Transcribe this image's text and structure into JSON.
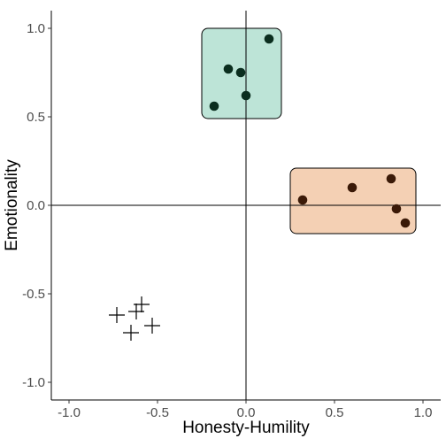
{
  "chart_data": {
    "type": "scatter",
    "title": "",
    "xlabel": "Honesty-Humility",
    "ylabel": "Emotionality",
    "xlim": [
      -1.1,
      1.1
    ],
    "ylim": [
      -1.1,
      1.1
    ],
    "x_ticks": [
      -1.0,
      -0.5,
      0.0,
      0.5,
      1.0
    ],
    "x_tick_labels": [
      "-1.0",
      "-0.5",
      "0.0",
      "0.5",
      "1.0"
    ],
    "y_ticks": [
      -1.0,
      -0.5,
      0.0,
      0.5,
      1.0
    ],
    "y_tick_labels": [
      "-1.0",
      "-0.5",
      "0.0",
      "0.5",
      "1.0"
    ],
    "grid": false,
    "reference_lines": {
      "x": 0,
      "y": 0
    },
    "series": [
      {
        "marker": "circle",
        "color": "#0b2e1f",
        "box": {
          "x": [
            -0.25,
            0.2
          ],
          "y": [
            0.49,
            1.0
          ],
          "fill": "#bde4d7"
        },
        "points": [
          {
            "x": 0.13,
            "y": 0.94
          },
          {
            "x": -0.1,
            "y": 0.77
          },
          {
            "x": -0.03,
            "y": 0.75
          },
          {
            "x": 0.0,
            "y": 0.62
          },
          {
            "x": -0.18,
            "y": 0.56
          }
        ]
      },
      {
        "marker": "circle",
        "color": "#3b1a08",
        "box": {
          "x": [
            0.25,
            0.96
          ],
          "y": [
            -0.16,
            0.21
          ],
          "fill": "#f4d0b4"
        },
        "points": [
          {
            "x": 0.32,
            "y": 0.03
          },
          {
            "x": 0.6,
            "y": 0.1
          },
          {
            "x": 0.82,
            "y": 0.15
          },
          {
            "x": 0.85,
            "y": -0.02
          },
          {
            "x": 0.9,
            "y": -0.1
          }
        ]
      },
      {
        "marker": "cross",
        "color": "#000000",
        "points": [
          {
            "x": -0.73,
            "y": -0.62
          },
          {
            "x": -0.62,
            "y": -0.6
          },
          {
            "x": -0.59,
            "y": -0.56
          },
          {
            "x": -0.53,
            "y": -0.68
          },
          {
            "x": -0.65,
            "y": -0.72
          }
        ]
      }
    ]
  }
}
